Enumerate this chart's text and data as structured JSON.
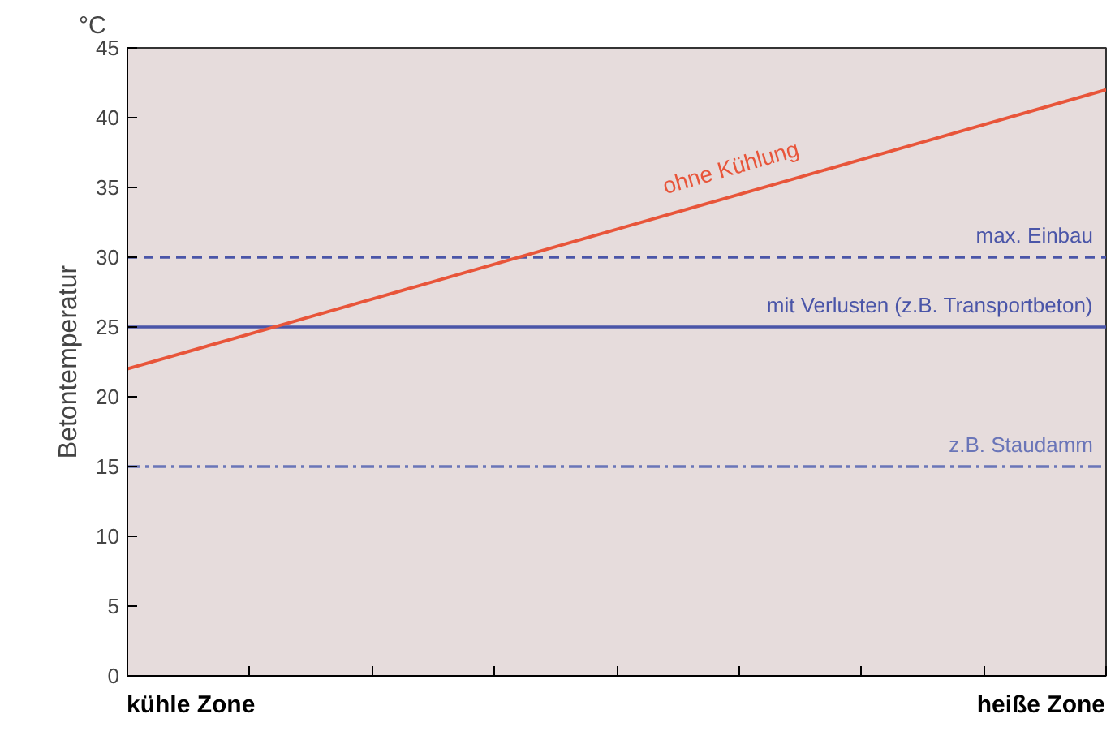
{
  "chart_data": {
    "type": "line",
    "ylabel": "Betontemperatur",
    "annotations": [
      "°C",
      "kühle Zone",
      "heiße Zone"
    ],
    "categories": [
      null,
      null,
      null,
      null,
      null,
      null,
      null,
      null,
      null
    ],
    "ylim": [
      0,
      45
    ],
    "yticks": [
      0,
      5,
      10,
      15,
      20,
      25,
      30,
      35,
      40,
      45
    ],
    "tick_labels": "y",
    "grid": false,
    "marker": "none",
    "series": [
      {
        "name": "ohne Kühlung",
        "color": "#e8553a",
        "values": [
          22,
          24.5,
          27,
          29.5,
          32,
          34.5,
          37,
          39.5,
          42
        ]
      }
    ],
    "ref_lines": [
      {
        "axis": "y",
        "value": 30,
        "label": "max. Einbau",
        "color": "#4a55a8",
        "line_style": "dashed"
      },
      {
        "axis": "y",
        "value": 25,
        "label": "mit Verlusten (z.B. Transportbeton)",
        "color": "#4a55a8",
        "line_style": "solid"
      },
      {
        "axis": "y",
        "value": 15,
        "label": "z.B. Staudamm",
        "color": "#6a75b8",
        "line_style": "dashdot"
      }
    ]
  }
}
